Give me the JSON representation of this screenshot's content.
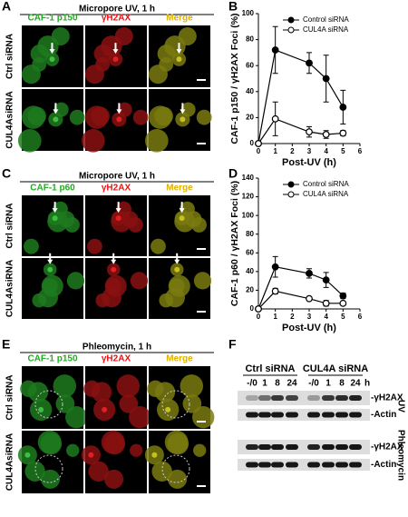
{
  "panel_labels": [
    "A",
    "B",
    "C",
    "D",
    "E",
    "F"
  ],
  "microscopy": [
    {
      "title": "Micropore UV, 1 h",
      "columns": [
        "CAF-1 p150",
        "γH2AX",
        "Merge"
      ],
      "rows": [
        "Ctrl siRNA",
        "CUL4AsiRNA"
      ]
    },
    {
      "title": "Micropore UV, 1 h",
      "columns": [
        "CAF-1 p60",
        "γH2AX",
        "Merge"
      ],
      "rows": [
        "Ctrl siRNA",
        "CUL4AsiRNA"
      ]
    },
    {
      "title": "Phleomycin, 1 h",
      "columns": [
        "CAF-1 p150",
        "γH2AX",
        "Merge"
      ],
      "rows": [
        "Ctrl siRNA",
        "CUL4AsiRNA"
      ]
    }
  ],
  "chart_data": [
    {
      "type": "line",
      "xlabel": "Post-UV (h)",
      "ylabel": "CAF-1 p150 / γH2AX Foci (%)",
      "x": [
        0,
        1,
        3,
        4,
        5
      ],
      "xlim": [
        0,
        6
      ],
      "xticks": [
        0,
        1,
        2,
        3,
        4,
        5,
        6
      ],
      "ylim": [
        0,
        100
      ],
      "yticks": [
        0,
        20,
        40,
        60,
        80,
        100
      ],
      "legend": "upper right",
      "series": [
        {
          "name": "Control siRNA",
          "color": "#000000",
          "marker": "filled",
          "values": [
            0,
            72,
            62,
            50,
            28
          ],
          "errors": [
            null,
            18,
            8,
            18,
            13
          ]
        },
        {
          "name": "CUL4A siRNA",
          "color": "#000000",
          "marker": "open",
          "values": [
            0,
            19,
            9,
            7,
            8
          ],
          "errors": [
            null,
            13,
            4,
            3,
            2
          ]
        }
      ]
    },
    {
      "type": "line",
      "xlabel": "Post-UV (h)",
      "ylabel": "CAF-1 p60 / γH2AX Foci (%)",
      "x": [
        0,
        1,
        3,
        4,
        5
      ],
      "xlim": [
        0,
        6
      ],
      "xticks": [
        0,
        1,
        2,
        3,
        4,
        5,
        6
      ],
      "ylim": [
        0,
        140
      ],
      "yticks": [
        0,
        20,
        40,
        60,
        80,
        100,
        120,
        140
      ],
      "legend": "upper right",
      "series": [
        {
          "name": "Control siRNA",
          "color": "#000000",
          "marker": "filled",
          "values": [
            0,
            45,
            38,
            31,
            14
          ],
          "errors": [
            null,
            11,
            5,
            8,
            3
          ]
        },
        {
          "name": "CUL4A siRNA",
          "color": "#000000",
          "marker": "open",
          "values": [
            0,
            19,
            11,
            6,
            6
          ],
          "errors": [
            null,
            3,
            1.5,
            3,
            1.5
          ]
        }
      ]
    }
  ],
  "western_blot": {
    "groups": [
      "Ctrl siRNA",
      "CUL4A siRNA"
    ],
    "lanes": [
      "-/0",
      "1",
      "8",
      "24",
      "-/0",
      "1",
      "8",
      "24"
    ],
    "unit": "h",
    "bands": [
      "-γH2AX",
      "-Actin",
      "-γH2AX",
      "-Actin"
    ],
    "treatments": [
      "UV",
      "Phleomycin"
    ]
  }
}
